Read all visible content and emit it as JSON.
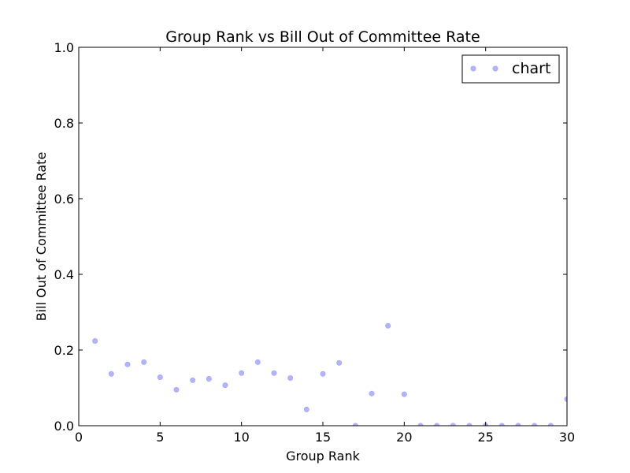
{
  "chart_data": {
    "type": "scatter",
    "title": "Group Rank vs Bill Out of Committee Rate",
    "xlabel": "Group Rank",
    "ylabel": "Bill Out of Committee Rate",
    "xlim": [
      0,
      30
    ],
    "ylim": [
      0.0,
      1.0
    ],
    "xticks": [
      0,
      5,
      10,
      15,
      20,
      25,
      30
    ],
    "xtick_labels": [
      "0",
      "5",
      "10",
      "15",
      "20",
      "25",
      "30"
    ],
    "yticks": [
      0.0,
      0.2,
      0.4,
      0.6,
      0.8,
      1.0
    ],
    "ytick_labels": [
      "0.0",
      "0.2",
      "0.4",
      "0.6",
      "0.8",
      "1.0"
    ],
    "grid": false,
    "legend_position": "top-right",
    "series": [
      {
        "name": "chart",
        "color": "#8080ff",
        "x": [
          1,
          2,
          3,
          4,
          5,
          6,
          7,
          8,
          9,
          10,
          11,
          12,
          13,
          14,
          15,
          16,
          17,
          18,
          19,
          20,
          21,
          22,
          23,
          24,
          25,
          26,
          27,
          28,
          29,
          30
        ],
        "y": [
          0.224,
          0.137,
          0.162,
          0.168,
          0.128,
          0.095,
          0.12,
          0.124,
          0.107,
          0.139,
          0.168,
          0.139,
          0.126,
          0.043,
          0.137,
          0.166,
          0.0,
          0.085,
          0.264,
          0.083,
          0.0,
          0.0,
          0.0,
          0.0,
          0.0,
          0.0,
          0.0,
          0.0,
          0.0,
          0.07
        ]
      }
    ]
  }
}
